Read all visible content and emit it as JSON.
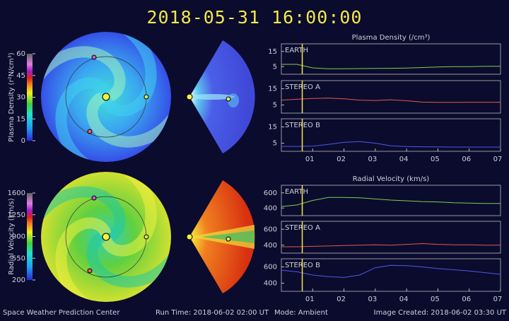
{
  "header": {
    "title": "2018-05-31  16:00:00"
  },
  "footer": {
    "center": "Space Weather Prediction Center",
    "run_time": "Run Time: 2018-06-02 02:00 UT",
    "mode": "Mode: Ambient",
    "created": "Image Created: 2018-06-02 03:30 UT"
  },
  "colorbars": [
    {
      "label": "Plasma Density (r²N/cm³)",
      "lim": [
        0,
        60
      ],
      "ticks": [
        0,
        15,
        30,
        45,
        60
      ]
    },
    {
      "label": "Radial Velocity (km/s)",
      "lim": [
        200,
        1600
      ],
      "ticks": [
        200,
        550,
        900,
        1250,
        1600
      ]
    }
  ],
  "now_x": 0.667,
  "chart_data": [
    {
      "type": "line",
      "title": "Plasma Density (/cm³)",
      "label": "EARTH",
      "x": [
        0,
        0.5,
        1,
        1.5,
        2,
        2.5,
        3,
        3.5,
        4,
        4.5,
        5,
        5.5,
        6,
        6.5,
        7
      ],
      "series": [
        {
          "name": "EARTH",
          "color": "#7ccf4a",
          "values": [
            6.5,
            6.5,
            4.2,
            3.6,
            3.6,
            3.7,
            3.8,
            3.9,
            4.1,
            4.4,
            4.8,
            5,
            5,
            5.2,
            5.2
          ]
        }
      ],
      "xlim": [
        0,
        7
      ],
      "ylim": [
        0,
        20
      ],
      "yticks": [
        5,
        15
      ]
    },
    {
      "type": "line",
      "label": "STEREO A",
      "x": [
        0,
        0.5,
        1,
        1.5,
        2,
        2.5,
        3,
        3.5,
        4,
        4.5,
        5,
        5.5,
        6,
        6.5,
        7
      ],
      "series": [
        {
          "name": "STEREO A",
          "color": "#e05a4a",
          "values": [
            8,
            8.5,
            9,
            9.2,
            8.8,
            8,
            7.8,
            8.2,
            7.6,
            6.8,
            6.6,
            6.6,
            6.7,
            6.7,
            6.7
          ]
        }
      ],
      "xlim": [
        0,
        7
      ],
      "ylim": [
        0,
        20
      ],
      "yticks": [
        5,
        15
      ]
    },
    {
      "type": "line",
      "label": "STEREO B",
      "x": [
        0,
        0.5,
        1,
        1.5,
        2,
        2.5,
        3,
        3.5,
        4,
        4.5,
        5,
        5.5,
        6,
        6.5,
        7
      ],
      "series": [
        {
          "name": "STEREO B",
          "color": "#4a5ae8",
          "values": [
            3,
            3,
            3.2,
            4.2,
            5.5,
            6,
            5,
            3.4,
            2.9,
            2.8,
            2.7,
            2.6,
            2.6,
            2.6,
            2.6
          ]
        }
      ],
      "xlim": [
        0,
        7
      ],
      "ylim": [
        0,
        20
      ],
      "yticks": [
        5,
        15
      ],
      "xticks": [
        {
          "value": 1,
          "label": "01"
        },
        {
          "value": 2,
          "label": "02"
        },
        {
          "value": 3,
          "label": "03"
        },
        {
          "value": 4,
          "label": "04"
        },
        {
          "value": 5,
          "label": "05"
        },
        {
          "value": 6,
          "label": "06"
        },
        {
          "value": 7,
          "label": "07"
        }
      ]
    },
    {
      "type": "line",
      "title": "Radial Velocity (km/s)",
      "label": "EARTH",
      "x": [
        0,
        0.5,
        1,
        1.5,
        2,
        2.5,
        3,
        3.5,
        4,
        4.5,
        5,
        5.5,
        6,
        6.5,
        7
      ],
      "series": [
        {
          "name": "EARTH",
          "color": "#7ccf4a",
          "values": [
            420,
            440,
            500,
            540,
            540,
            535,
            520,
            505,
            495,
            485,
            480,
            470,
            465,
            460,
            460
          ]
        }
      ],
      "xlim": [
        0,
        7
      ],
      "ylim": [
        300,
        700
      ],
      "yticks": [
        400,
        600
      ]
    },
    {
      "type": "line",
      "label": "STEREO A",
      "x": [
        0,
        0.5,
        1,
        1.5,
        2,
        2.5,
        3,
        3.5,
        4,
        4.5,
        5,
        5.5,
        6,
        6.5,
        7
      ],
      "series": [
        {
          "name": "STEREO A",
          "color": "#e05a4a",
          "values": [
            380,
            380,
            385,
            390,
            395,
            400,
            405,
            400,
            410,
            420,
            410,
            405,
            405,
            400,
            400
          ]
        }
      ],
      "xlim": [
        0,
        7
      ],
      "ylim": [
        300,
        700
      ],
      "yticks": [
        400,
        600
      ]
    },
    {
      "type": "line",
      "label": "STEREO B",
      "x": [
        0,
        0.5,
        1,
        1.5,
        2,
        2.5,
        3,
        3.5,
        4,
        4.5,
        5,
        5.5,
        6,
        6.5,
        7
      ],
      "series": [
        {
          "name": "STEREO B",
          "color": "#4a5ae8",
          "values": [
            560,
            540,
            500,
            480,
            470,
            500,
            590,
            620,
            615,
            600,
            580,
            565,
            550,
            530,
            510
          ]
        }
      ],
      "xlim": [
        0,
        7
      ],
      "ylim": [
        300,
        700
      ],
      "yticks": [
        400,
        600
      ],
      "xticks": [
        {
          "value": 1,
          "label": "01"
        },
        {
          "value": 2,
          "label": "02"
        },
        {
          "value": 3,
          "label": "03"
        },
        {
          "value": 4,
          "label": "04"
        },
        {
          "value": 5,
          "label": "05"
        },
        {
          "value": 6,
          "label": "06"
        },
        {
          "value": 7,
          "label": "07"
        }
      ]
    }
  ]
}
